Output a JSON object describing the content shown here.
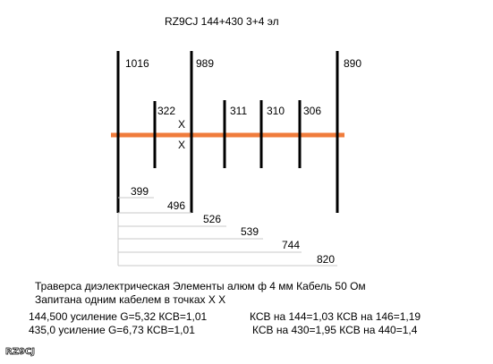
{
  "title": "RZ9CJ 144+430  3+4 эл",
  "feed_marker": "X",
  "elements": [
    {
      "label": "1016"
    },
    {
      "label": "322"
    },
    {
      "label": "989"
    },
    {
      "label": "311"
    },
    {
      "label": "310"
    },
    {
      "label": "306"
    },
    {
      "label": "890"
    }
  ],
  "spacings": [
    "399",
    "496",
    "526",
    "539",
    "744",
    "820"
  ],
  "notes": {
    "line1": "Траверса диэлектрическая Элементы алюм ф 4 мм Кабель 50 Ом",
    "line2": "Запитана одним кабелем в точках X X",
    "r1_left": "144,500 усиление G=5,32  КСВ=1,01",
    "r1_right": "КСВ на 144=1,03   КСВ на 146=1,19",
    "r2_left": "435,0 усиление G=6,73 КСВ=1,01",
    "r2_right": "КСВ на 430=1,95  КСВ на  440=1,4"
  },
  "watermark": "RZ9CJ",
  "colors": {
    "boom": "#f07c3c",
    "element": "#000000",
    "dim_line": "#c8c8c8"
  }
}
